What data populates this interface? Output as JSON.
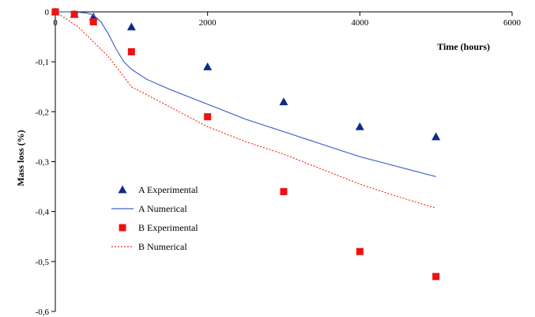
{
  "chart_data": {
    "type": "scatter",
    "title": "",
    "xlabel": "Time (hours)",
    "ylabel": "Mass loss (%)",
    "xlim": [
      0,
      6000
    ],
    "ylim": [
      -0.6,
      0
    ],
    "x_ticks": [
      0,
      2000,
      4000,
      6000
    ],
    "x_tick_labels": [
      "0",
      "2000",
      "4000",
      "6000"
    ],
    "y_ticks": [
      0,
      -0.1,
      -0.2,
      -0.3,
      -0.4,
      -0.5,
      -0.6
    ],
    "y_tick_labels": [
      "0",
      "-0,1",
      "-0,2",
      "-0,3",
      "-0,4",
      "-0,5",
      "-0,6"
    ],
    "grid": false,
    "legend_position": "lower-left",
    "series": [
      {
        "name": "A Experimental",
        "kind": "markers",
        "marker": "triangle",
        "color": "#0d2a8a",
        "x": [
          0,
          250,
          500,
          1000,
          2000,
          3000,
          4000,
          5000
        ],
        "y": [
          0,
          -0.005,
          -0.01,
          -0.03,
          -0.11,
          -0.18,
          -0.23,
          -0.25
        ]
      },
      {
        "name": "A Numerical",
        "kind": "line",
        "dash": "solid",
        "color": "#4466cc",
        "x": [
          0,
          200,
          400,
          500,
          600,
          700,
          800,
          900,
          1000,
          1200,
          1500,
          2000,
          2500,
          3000,
          3500,
          4000,
          4500,
          5000
        ],
        "y": [
          0,
          0,
          -0.002,
          -0.006,
          -0.02,
          -0.045,
          -0.075,
          -0.1,
          -0.115,
          -0.135,
          -0.155,
          -0.185,
          -0.215,
          -0.24,
          -0.265,
          -0.29,
          -0.31,
          -0.33
        ]
      },
      {
        "name": "B Experimental",
        "kind": "markers",
        "marker": "square",
        "color": "#ee1111",
        "x": [
          0,
          250,
          500,
          1000,
          2000,
          3000,
          4000,
          5000
        ],
        "y": [
          0,
          -0.005,
          -0.02,
          -0.08,
          -0.21,
          -0.36,
          -0.48,
          -0.53
        ]
      },
      {
        "name": "B Numerical",
        "kind": "line",
        "dash": "dotted",
        "color": "#ee3322",
        "x": [
          0,
          100,
          300,
          500,
          700,
          1000,
          1500,
          2000,
          2500,
          3000,
          3500,
          4000,
          4500,
          5000
        ],
        "y": [
          0,
          -0.01,
          -0.03,
          -0.06,
          -0.09,
          -0.15,
          -0.19,
          -0.23,
          -0.26,
          -0.285,
          -0.315,
          -0.345,
          -0.37,
          -0.393
        ]
      }
    ]
  }
}
